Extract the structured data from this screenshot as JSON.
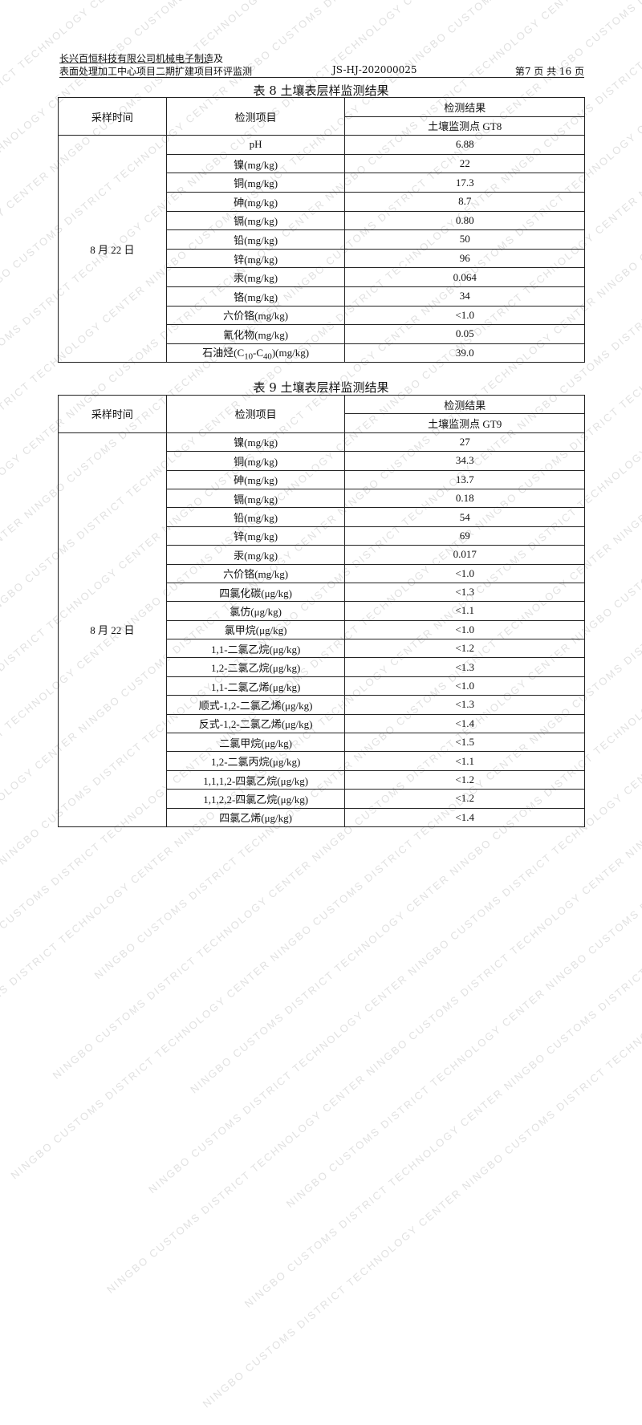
{
  "header": {
    "project_line1": "长兴百恒科技有限公司机械电子制造及",
    "project_line2": "表面处理加工中心项目二期扩建项目环评监测",
    "report_no": "JS-HJ-202000025",
    "page_info": "第7 页 共 16 页"
  },
  "watermark": "NINGBO CUSTOMS DISTRICT TECHNOLOGY CENTER",
  "table8": {
    "title": "表 8 土壤表层样监测结果",
    "col_time": "采样时间",
    "col_item": "检测项目",
    "col_result": "检测结果",
    "col_point": "土壤监测点 GT8",
    "date": "8 月 22 日",
    "rows": [
      {
        "item": "pH",
        "value": "6.88"
      },
      {
        "item": "镍(mg/kg)",
        "value": "22"
      },
      {
        "item": "铜(mg/kg)",
        "value": "17.3"
      },
      {
        "item": "砷(mg/kg)",
        "value": "8.7"
      },
      {
        "item": "镉(mg/kg)",
        "value": "0.80"
      },
      {
        "item": "铅(mg/kg)",
        "value": "50"
      },
      {
        "item": "锌(mg/kg)",
        "value": "96"
      },
      {
        "item": "汞(mg/kg)",
        "value": "0.064"
      },
      {
        "item": "铬(mg/kg)",
        "value": "34"
      },
      {
        "item": "六价铬(mg/kg)",
        "value": "<1.0"
      },
      {
        "item": "氰化物(mg/kg)",
        "value": "0.05"
      },
      {
        "item": "石油烃(C10-C40)(mg/kg)",
        "value": "39.0"
      }
    ]
  },
  "table9": {
    "title": "表 9 土壤表层样监测结果",
    "col_time": "采样时间",
    "col_item": "检测项目",
    "col_result": "检测结果",
    "col_point": "土壤监测点 GT9",
    "date": "8 月 22 日",
    "rows": [
      {
        "item": "镍(mg/kg)",
        "value": "27"
      },
      {
        "item": "铜(mg/kg)",
        "value": "34.3"
      },
      {
        "item": "砷(mg/kg)",
        "value": "13.7"
      },
      {
        "item": "镉(mg/kg)",
        "value": "0.18"
      },
      {
        "item": "铅(mg/kg)",
        "value": "54"
      },
      {
        "item": "锌(mg/kg)",
        "value": "69"
      },
      {
        "item": "汞(mg/kg)",
        "value": "0.017"
      },
      {
        "item": "六价铬(mg/kg)",
        "value": "<1.0"
      },
      {
        "item": "四氯化碳(μg/kg)",
        "value": "<1.3"
      },
      {
        "item": "氯仿(μg/kg)",
        "value": "<1.1"
      },
      {
        "item": "氯甲烷(μg/kg)",
        "value": "<1.0"
      },
      {
        "item": "1,1-二氯乙烷(μg/kg)",
        "value": "<1.2"
      },
      {
        "item": "1,2-二氯乙烷(μg/kg)",
        "value": "<1.3"
      },
      {
        "item": "1,1-二氯乙烯(μg/kg)",
        "value": "<1.0"
      },
      {
        "item": "顺式-1,2-二氯乙烯(μg/kg)",
        "value": "<1.3"
      },
      {
        "item": "反式-1,2-二氯乙烯(μg/kg)",
        "value": "<1.4"
      },
      {
        "item": "二氯甲烷(μg/kg)",
        "value": "<1.5"
      },
      {
        "item": "1,2-二氯丙烷(μg/kg)",
        "value": "<1.1"
      },
      {
        "item": "1,1,1,2-四氯乙烷(μg/kg)",
        "value": "<1.2"
      },
      {
        "item": "1,1,2,2-四氯乙烷(μg/kg)",
        "value": "<1.2"
      },
      {
        "item": "四氯乙烯(μg/kg)",
        "value": "<1.4"
      }
    ]
  }
}
